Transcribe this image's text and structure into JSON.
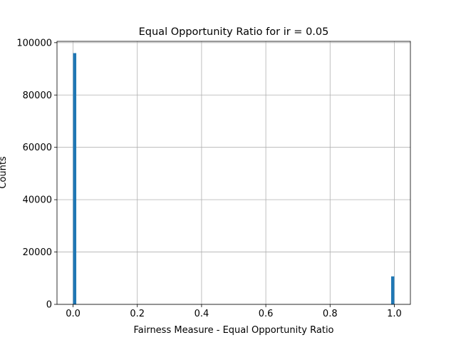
{
  "chart_data": {
    "type": "bar",
    "title": "Equal Opportunity Ratio for ir = 0.05",
    "xlabel": "Fairness Measure - Equal Opportunity Ratio",
    "ylabel": "Counts",
    "xlim": [
      -0.05,
      1.05
    ],
    "ylim": [
      0,
      100500
    ],
    "xticks": [
      0.0,
      0.2,
      0.4,
      0.6,
      0.8,
      1.0
    ],
    "xtick_labels": [
      "0.0",
      "0.2",
      "0.4",
      "0.6",
      "0.8",
      "1.0"
    ],
    "yticks": [
      0,
      20000,
      40000,
      60000,
      80000,
      100000
    ],
    "ytick_labels": [
      "0",
      "20000",
      "40000",
      "60000",
      "80000",
      "100000"
    ],
    "grid": true,
    "bar_color": "#1f77b4",
    "bins": [
      {
        "x0": 0.0,
        "x1": 0.01,
        "count": 96000
      },
      {
        "x0": 0.99,
        "x1": 1.0,
        "count": 10700
      }
    ]
  }
}
